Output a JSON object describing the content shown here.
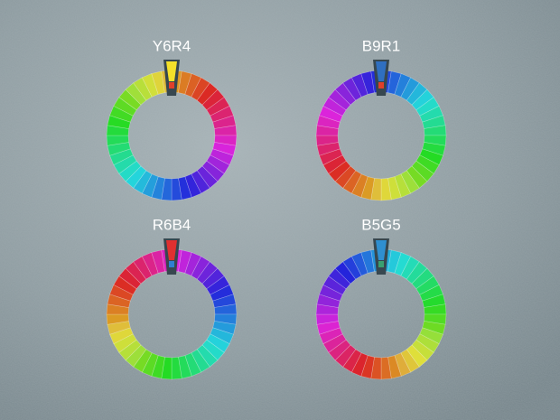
{
  "wheels": [
    {
      "label": "Y6R4"
    },
    {
      "label": "B9R1"
    },
    {
      "label": "R6B4"
    },
    {
      "label": "B5G5"
    }
  ]
}
